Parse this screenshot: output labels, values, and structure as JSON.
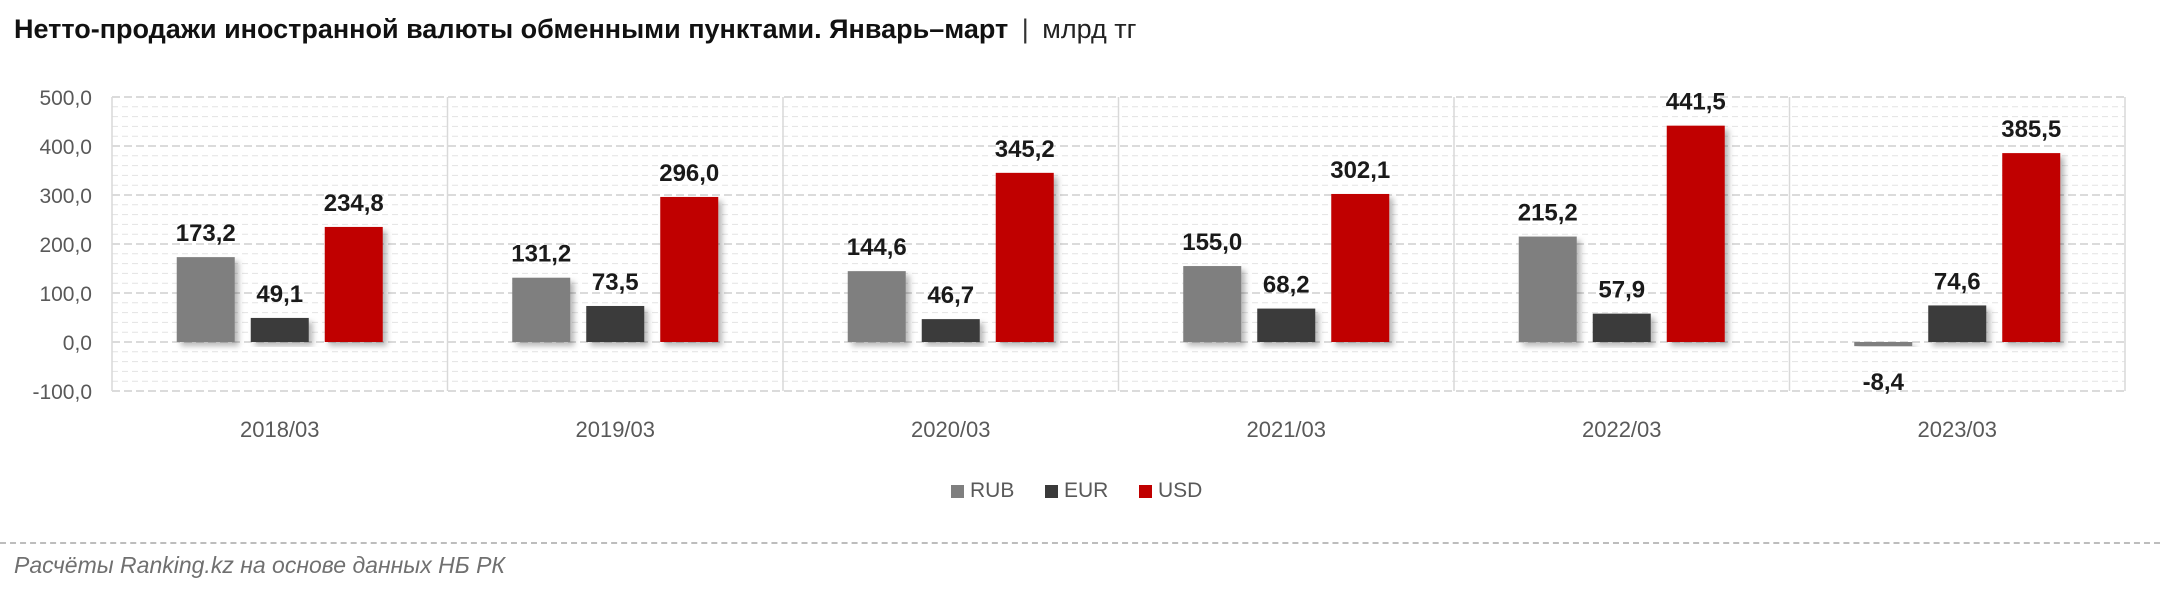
{
  "title": "Нетто-продажи иностранной валюты обменными пунктами. Январь–март",
  "title_separator": "|",
  "unit": "млрд тг",
  "source": "Расчёты Ranking.kz на основе данных НБ РК",
  "chart_data": {
    "type": "bar",
    "categories": [
      "2018/03",
      "2019/03",
      "2020/03",
      "2021/03",
      "2022/03",
      "2023/03"
    ],
    "series": [
      {
        "name": "RUB",
        "color": "#7f7f7f",
        "values": [
          173.2,
          131.2,
          144.6,
          155.0,
          215.2,
          -8.4
        ],
        "labels": [
          "173,2",
          "131,2",
          "144,6",
          "155,0",
          "215,2",
          "-8,4"
        ]
      },
      {
        "name": "EUR",
        "color": "#3a3a3a",
        "values": [
          49.1,
          73.5,
          46.7,
          68.2,
          57.9,
          74.6
        ],
        "labels": [
          "49,1",
          "73,5",
          "46,7",
          "68,2",
          "57,9",
          "74,6"
        ]
      },
      {
        "name": "USD",
        "color": "#c00000",
        "values": [
          234.8,
          296.0,
          345.2,
          302.1,
          441.5,
          385.5
        ],
        "labels": [
          "234,8",
          "296,0",
          "345,2",
          "302,1",
          "441,5",
          "385,5"
        ]
      }
    ],
    "y_ticks": [
      {
        "value": 500,
        "label": "500,0"
      },
      {
        "value": 400,
        "label": "400,0"
      },
      {
        "value": 300,
        "label": "300,0"
      },
      {
        "value": 200,
        "label": "200,0"
      },
      {
        "value": 100,
        "label": "100,0"
      },
      {
        "value": 0,
        "label": "0,0"
      },
      {
        "value": -100,
        "label": "-100,0"
      }
    ],
    "ylim": [
      -100,
      500
    ],
    "grid": true,
    "legend_position": "bottom"
  }
}
